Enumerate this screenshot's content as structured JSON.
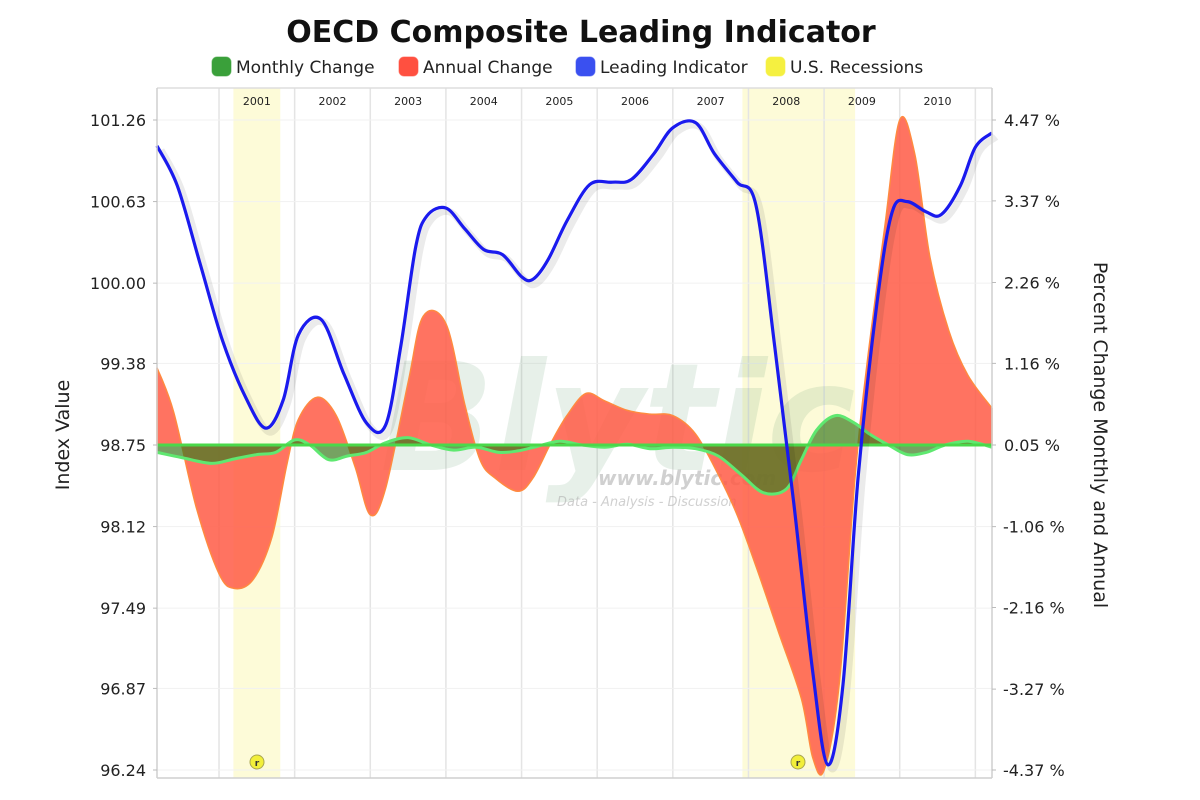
{
  "chart_data": {
    "type": "line",
    "title": "OECD Composite Leading Indicator",
    "legend": {
      "placement": "top",
      "entries": [
        {
          "name": "Monthly Change",
          "color": "#3aa03a"
        },
        {
          "name": "Annual Change",
          "color": "#ff5040"
        },
        {
          "name": "Leading Indicator",
          "color": "#3a50f0"
        },
        {
          "name": "U.S. Recessions",
          "color": "#f5f040"
        }
      ]
    },
    "x_axis": {
      "type": "time",
      "range": [
        2000.18,
        2011.22
      ],
      "tick_labels": [
        "2001",
        "2002",
        "2003",
        "2004",
        "2005",
        "2006",
        "2007",
        "2008",
        "2009",
        "2010"
      ],
      "tick_values": [
        2001.5,
        2002.5,
        2003.5,
        2004.5,
        2005.5,
        2006.5,
        2007.5,
        2008.5,
        2009.5,
        2010.5
      ],
      "position": "top",
      "grid": true
    },
    "y_axis_left": {
      "label": "Index Value",
      "range": [
        96.24,
        101.26
      ],
      "tick_labels": [
        "101.26",
        "100.63",
        "100.00",
        "99.38",
        "98.75",
        "98.12",
        "97.49",
        "96.87",
        "96.24"
      ],
      "tick_values": [
        101.26,
        100.63,
        100.0,
        99.38,
        98.75,
        98.12,
        97.49,
        96.87,
        96.24
      ]
    },
    "y_axis_right": {
      "label": "Percent Change Monthly and Annual",
      "range": [
        -4.37,
        4.47
      ],
      "tick_labels": [
        "4.47 %",
        "3.37 %",
        "2.26 %",
        "1.16 %",
        "0.05 %",
        "-1.06 %",
        "-2.16 %",
        "-3.27 %",
        "-4.37 %"
      ],
      "tick_values": [
        4.47,
        3.37,
        2.26,
        1.16,
        0.05,
        -1.06,
        -2.16,
        -3.27,
        -4.37
      ]
    },
    "recessions": [
      {
        "label": "2001",
        "start": 2001.19,
        "end": 2001.81,
        "marker": "r"
      },
      {
        "label": "2008",
        "start": 2007.92,
        "end": 2009.41,
        "marker": "r"
      }
    ],
    "series": [
      {
        "name": "Leading Indicator",
        "axis": "left",
        "style": "line",
        "x": [
          2000.18,
          2000.45,
          2000.75,
          2001.05,
          2001.35,
          2001.62,
          2001.85,
          2002.05,
          2002.35,
          2002.65,
          2002.95,
          2003.2,
          2003.4,
          2003.6,
          2003.75,
          2004.0,
          2004.25,
          2004.5,
          2004.75,
          2005.0,
          2005.15,
          2005.35,
          2005.6,
          2005.9,
          2006.2,
          2006.45,
          2006.75,
          2007.0,
          2007.3,
          2007.55,
          2007.85,
          2008.1,
          2008.35,
          2008.6,
          2008.85,
          2009.05,
          2009.25,
          2009.45,
          2009.7,
          2009.9,
          2010.1,
          2010.35,
          2010.55,
          2010.8,
          2011.0,
          2011.22
        ],
        "values": [
          101.06,
          100.75,
          100.15,
          99.55,
          99.12,
          98.88,
          99.1,
          99.6,
          99.72,
          99.3,
          98.92,
          98.9,
          99.5,
          100.28,
          100.52,
          100.58,
          100.42,
          100.26,
          100.22,
          100.05,
          100.03,
          100.18,
          100.48,
          100.76,
          100.78,
          100.8,
          101.0,
          101.2,
          101.24,
          101.0,
          100.78,
          100.6,
          99.5,
          98.3,
          97.0,
          96.28,
          96.9,
          98.5,
          99.85,
          100.55,
          100.63,
          100.55,
          100.53,
          100.75,
          101.05,
          101.16
        ]
      },
      {
        "name": "Annual Change",
        "axis": "right",
        "style": "area",
        "x": [
          2000.18,
          2000.4,
          2000.7,
          2001.0,
          2001.2,
          2001.45,
          2001.7,
          2001.9,
          2002.05,
          2002.3,
          2002.55,
          2002.8,
          2003.0,
          2003.2,
          2003.5,
          2003.7,
          2004.0,
          2004.25,
          2004.45,
          2004.65,
          2004.95,
          2005.15,
          2005.4,
          2005.6,
          2005.85,
          2006.1,
          2006.4,
          2006.7,
          2007.0,
          2007.3,
          2007.6,
          2007.85,
          2008.1,
          2008.4,
          2008.7,
          2008.85,
          2009.0,
          2009.2,
          2009.4,
          2009.55,
          2009.8,
          2010.0,
          2010.2,
          2010.4,
          2010.65,
          2010.9,
          2011.22
        ],
        "values": [
          1.1,
          0.5,
          -0.8,
          -1.7,
          -1.9,
          -1.78,
          -1.2,
          -0.2,
          0.4,
          0.7,
          0.45,
          -0.25,
          -0.9,
          -0.55,
          0.9,
          1.8,
          1.7,
          0.6,
          -0.15,
          -0.4,
          -0.58,
          -0.4,
          0.1,
          0.45,
          0.75,
          0.65,
          0.52,
          0.47,
          0.45,
          0.2,
          -0.35,
          -0.9,
          -1.6,
          -2.5,
          -3.4,
          -4.2,
          -4.37,
          -3.2,
          -0.5,
          1.0,
          3.0,
          4.47,
          4.0,
          2.6,
          1.6,
          1.0,
          0.55
        ]
      },
      {
        "name": "Monthly Change",
        "axis": "right",
        "style": "area",
        "x": [
          2000.18,
          2000.5,
          2000.9,
          2001.2,
          2001.5,
          2001.75,
          2002.0,
          2002.2,
          2002.45,
          2002.7,
          2002.95,
          2003.2,
          2003.5,
          2003.8,
          2004.1,
          2004.4,
          2004.7,
          2004.95,
          2005.2,
          2005.5,
          2005.8,
          2006.1,
          2006.4,
          2006.7,
          2007.0,
          2007.3,
          2007.6,
          2007.9,
          2008.2,
          2008.5,
          2008.7,
          2008.9,
          2009.15,
          2009.4,
          2009.6,
          2009.85,
          2010.1,
          2010.35,
          2010.6,
          2010.9,
          2011.22
        ],
        "values": [
          -0.05,
          -0.12,
          -0.2,
          -0.14,
          -0.08,
          -0.05,
          0.12,
          0.05,
          -0.15,
          -0.1,
          -0.05,
          0.08,
          0.15,
          0.05,
          -0.02,
          0.02,
          -0.05,
          -0.03,
          0.03,
          0.1,
          0.05,
          0.02,
          0.06,
          0.0,
          0.02,
          0.0,
          -0.1,
          -0.35,
          -0.6,
          -0.55,
          -0.15,
          0.25,
          0.45,
          0.35,
          0.2,
          0.05,
          -0.08,
          -0.05,
          0.05,
          0.1,
          0.02
        ]
      }
    ],
    "watermark": {
      "brand": "Blytic",
      "url": "www.blytic.com",
      "tagline": "Data - Analysis - Discussion"
    }
  }
}
